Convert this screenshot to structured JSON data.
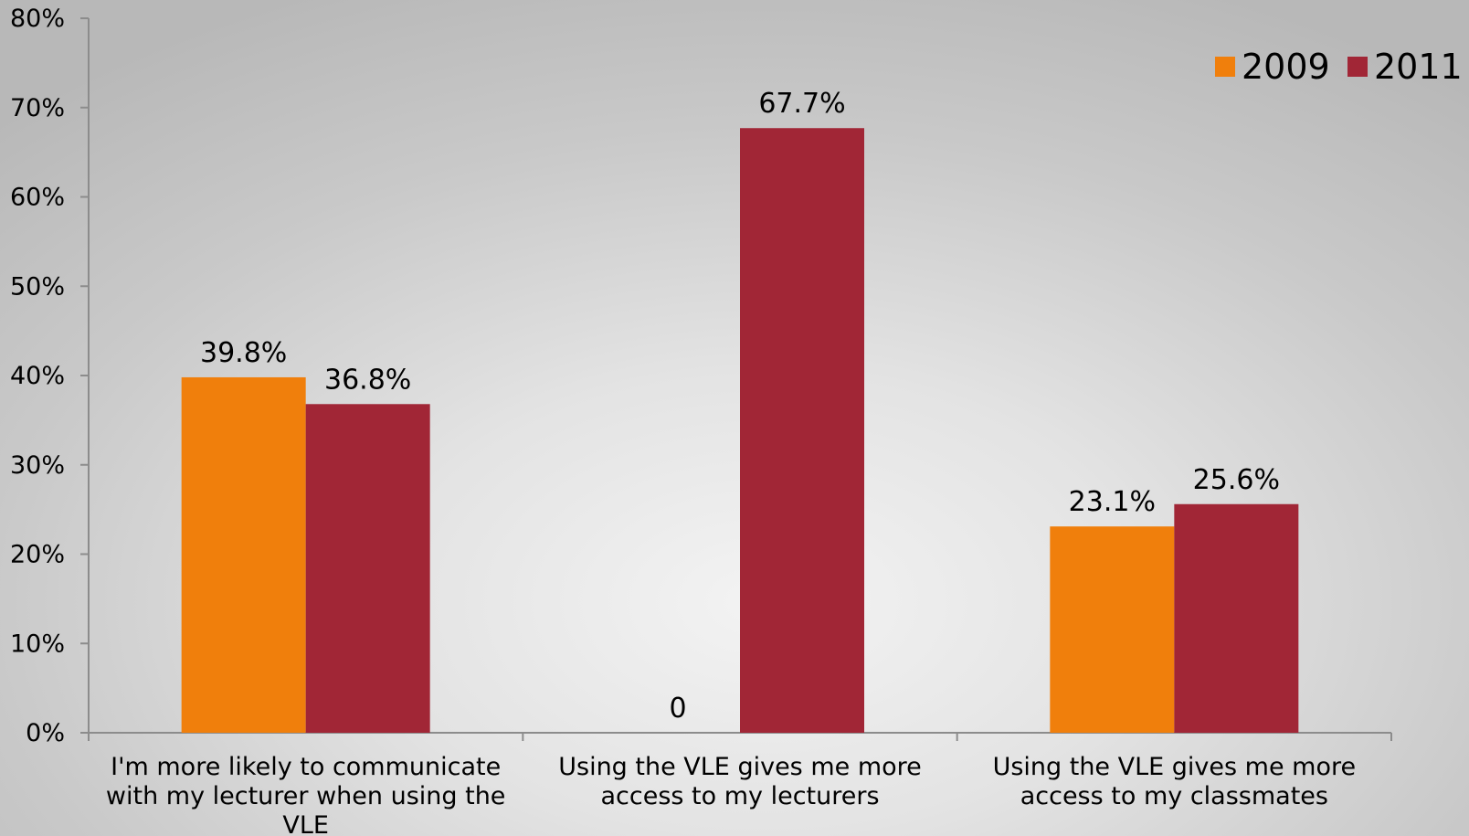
{
  "chart_data": {
    "type": "bar",
    "categories": [
      [
        "I'm more likely to communicate",
        "with my lecturer when using the",
        "VLE"
      ],
      [
        "Using the VLE gives me more",
        "access to my lecturers"
      ],
      [
        "Using the VLE gives me more",
        "access to my classmates"
      ]
    ],
    "series": [
      {
        "name": "2009",
        "color": "#f07f0c",
        "values": [
          39.8,
          0,
          23.1
        ],
        "labels": [
          "39.8%",
          "0",
          "23.1%"
        ]
      },
      {
        "name": "2011",
        "color": "#a12636",
        "values": [
          36.8,
          67.7,
          25.6
        ],
        "labels": [
          "36.8%",
          "67.7%",
          "25.6%"
        ]
      }
    ],
    "ylim": [
      0,
      80
    ],
    "yticks": [
      "0%",
      "10%",
      "20%",
      "30%",
      "40%",
      "50%",
      "60%",
      "70%",
      "80%"
    ],
    "ytick_values": [
      0,
      10,
      20,
      30,
      40,
      50,
      60,
      70,
      80
    ],
    "grid": false,
    "legend_position": "top-right",
    "axis_color": "#8c8c8c"
  }
}
